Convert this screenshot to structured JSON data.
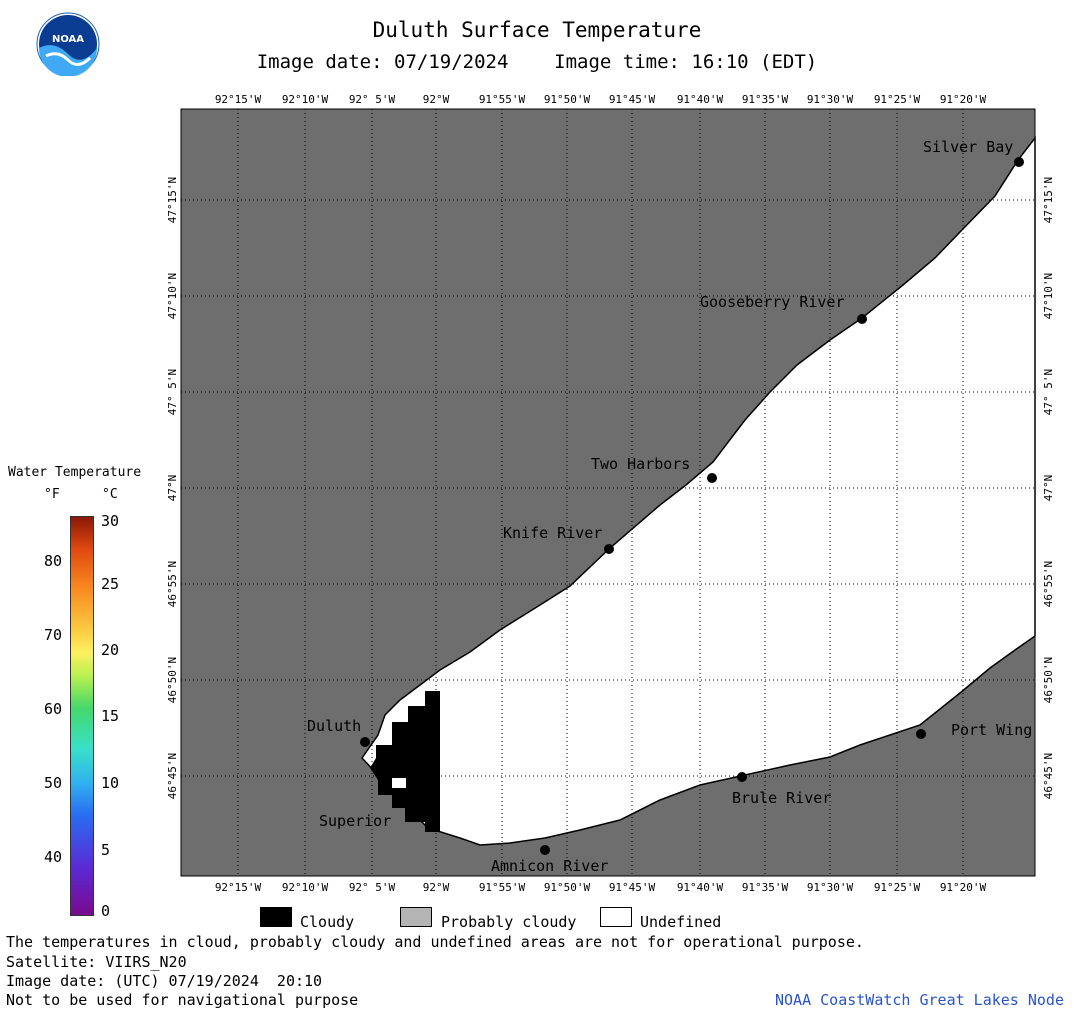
{
  "header": {
    "title": "Duluth Surface Temperature",
    "subtitle": "Image date: 07/19/2024    Image time: 16:10 (EDT)"
  },
  "logo": {
    "text": "NOAA",
    "icon": "noaa-logo"
  },
  "map": {
    "lon_labels": [
      "92°15'W",
      "92°10'W",
      "92° 5'W",
      "92°W",
      "91°55'W",
      "91°50'W",
      "91°45'W",
      "91°40'W",
      "91°35'W",
      "91°30'W",
      "91°25'W",
      "91°20'W"
    ],
    "lat_labels": [
      "47°15'N",
      "47°10'N",
      "47° 5'N",
      "47°N",
      "46°55'N",
      "46°50'N",
      "46°45'N"
    ],
    "places": [
      "Silver Bay",
      "Gooseberry River",
      "Two Harbors",
      "Knife River",
      "Duluth",
      "Superior",
      "Amnicon River",
      "Brule River",
      "Port Wing"
    ],
    "colors": {
      "land": "#6e6e6e",
      "water_undefined": "#ffffff",
      "cloud": "#000000",
      "grid": "#000000"
    }
  },
  "legend": {
    "title": "Water Temperature",
    "unit_f": "°F",
    "unit_c": "°C",
    "f_ticks": [
      "80",
      "70",
      "60",
      "50",
      "40"
    ],
    "c_ticks": [
      "30",
      "25",
      "20",
      "15",
      "10",
      "5",
      "0"
    ],
    "categories": [
      {
        "label": "Cloudy",
        "color": "#000000"
      },
      {
        "label": "Probably cloudy",
        "color": "#b4b4b4"
      },
      {
        "label": "Undefined",
        "color": "#ffffff"
      }
    ]
  },
  "footer": {
    "disclaimer": "The temperatures in cloud, probably cloudy and undefined areas are not for operational purpose.",
    "satellite": "Satellite: VIIRS_N20",
    "utc_date": "Image date: (UTC) 07/19/2024  20:10",
    "nav_warning": "Not to be used for navigational purpose",
    "source": "NOAA CoastWatch Great Lakes Node"
  }
}
